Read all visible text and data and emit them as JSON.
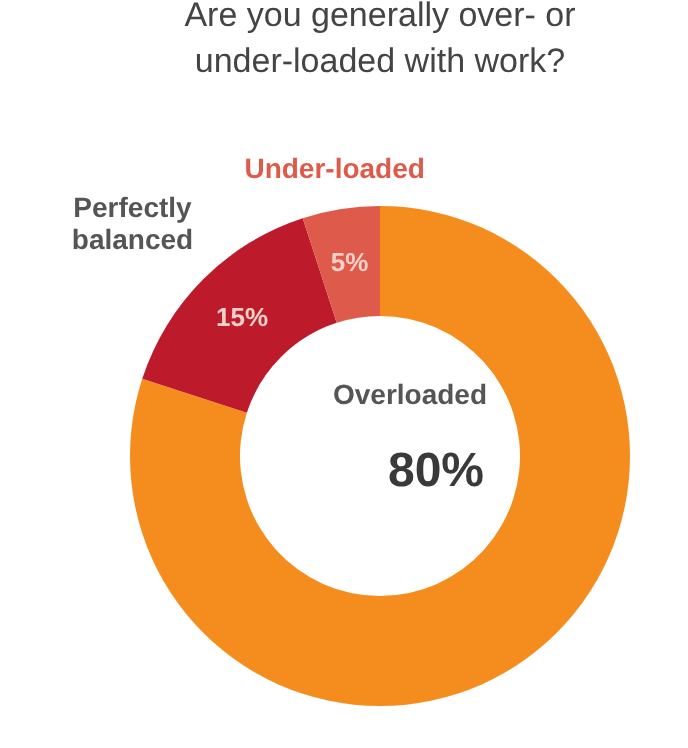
{
  "chart_data": {
    "type": "donut",
    "title": "Are you generally over- or\nunder-loaded with work?",
    "categories": [
      "Overloaded",
      "Perfectly balanced",
      "Under-loaded"
    ],
    "values": [
      80,
      15,
      5
    ],
    "colors": [
      "#f58d1e",
      "#bd1a2c",
      "#de5a4a"
    ],
    "value_labels": [
      "80%",
      "15%",
      "5%"
    ]
  }
}
